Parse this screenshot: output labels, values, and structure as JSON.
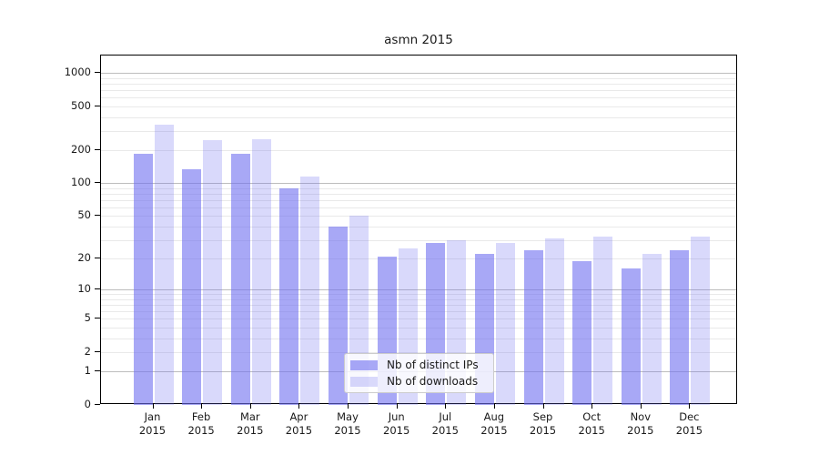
{
  "chart_data": {
    "type": "bar",
    "title": "asmn 2015",
    "xlabel": "",
    "ylabel": "",
    "year": "2015",
    "categories": [
      "Jan",
      "Feb",
      "Mar",
      "Apr",
      "May",
      "Jun",
      "Jul",
      "Aug",
      "Sep",
      "Oct",
      "Nov",
      "Dec"
    ],
    "series": [
      {
        "name": "Nb of distinct IPs",
        "values": [
          185,
          135,
          185,
          90,
          40,
          21,
          28,
          22,
          24,
          19,
          16,
          24
        ]
      },
      {
        "name": "Nb of downloads",
        "values": [
          340,
          245,
          250,
          115,
          50,
          25,
          30,
          28,
          31,
          32,
          22,
          32
        ]
      }
    ],
    "y_axis": {
      "scale": "log1p",
      "ticks": [
        0,
        1,
        2,
        5,
        10,
        20,
        50,
        100,
        200,
        500,
        1000
      ],
      "major_gridlines": [
        1,
        10,
        100,
        1000
      ],
      "range": [
        0,
        1440
      ]
    },
    "x_tick_label_format": "month over year, two lines",
    "grid": true,
    "legend": {
      "position": "lower center-right, overlapping bars",
      "entries": [
        "Nb of distinct IPs",
        "Nb of downloads"
      ]
    }
  },
  "colors": {
    "bar_base": "#6e6ef0",
    "bar_ip_fill": "rgba(110,110,240,0.60)",
    "bar_dl_fill": "rgba(110,110,240,0.26)",
    "grid_major": "#bdbdbd",
    "grid_minor": "#e9e9e9",
    "axis_spine": "#000000",
    "text": "#1a1a1a",
    "legend_border": "#cccccc",
    "background": "#ffffff"
  }
}
